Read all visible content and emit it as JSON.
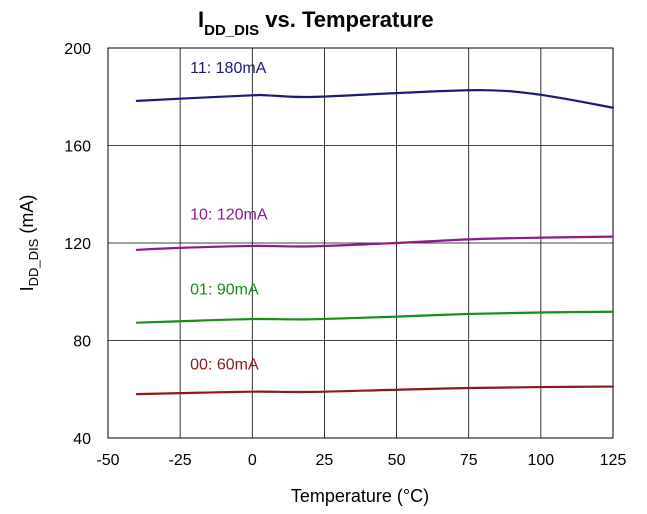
{
  "chart_data": {
    "type": "line",
    "title": {
      "main": "I",
      "sub": "DD_DIS",
      "rest": " vs. Temperature"
    },
    "xlabel": "Temperature (°C)",
    "ylabel": {
      "main": "I",
      "sub": "DD_DIS",
      "rest": " (mA)"
    },
    "xlim": [
      -50,
      125
    ],
    "ylim": [
      40,
      200
    ],
    "x_ticks": [
      "-50",
      "-25",
      "0",
      "25",
      "50",
      "75",
      "100",
      "125"
    ],
    "y_ticks": [
      "40",
      "80",
      "120",
      "160",
      "200"
    ],
    "grid": true,
    "series": [
      {
        "name": "11: 180mA",
        "color": "#1a1a7a",
        "x": [
          -40,
          -25,
          0,
          5,
          20,
          50,
          80,
          100,
          125
        ],
        "y": [
          178.3,
          179.2,
          180.6,
          180.6,
          179.9,
          181.5,
          182.7,
          180.8,
          175.5
        ]
      },
      {
        "name": "10: 120mA",
        "color": "#8b1a8b",
        "x": [
          -40,
          -25,
          0,
          20,
          50,
          75,
          100,
          125
        ],
        "y": [
          117.2,
          118.0,
          118.8,
          118.6,
          120.0,
          121.5,
          122.2,
          122.6
        ]
      },
      {
        "name": "01: 90mA",
        "color": "#1a8c1a",
        "x": [
          -40,
          -25,
          0,
          20,
          50,
          75,
          100,
          125
        ],
        "y": [
          87.3,
          87.9,
          88.8,
          88.7,
          89.8,
          90.9,
          91.5,
          91.8
        ]
      },
      {
        "name": "00: 60mA",
        "color": "#8b1a1a",
        "x": [
          -40,
          -25,
          0,
          20,
          50,
          75,
          100,
          125
        ],
        "y": [
          58.0,
          58.4,
          59.0,
          58.9,
          59.8,
          60.5,
          60.9,
          61.1
        ]
      }
    ]
  }
}
